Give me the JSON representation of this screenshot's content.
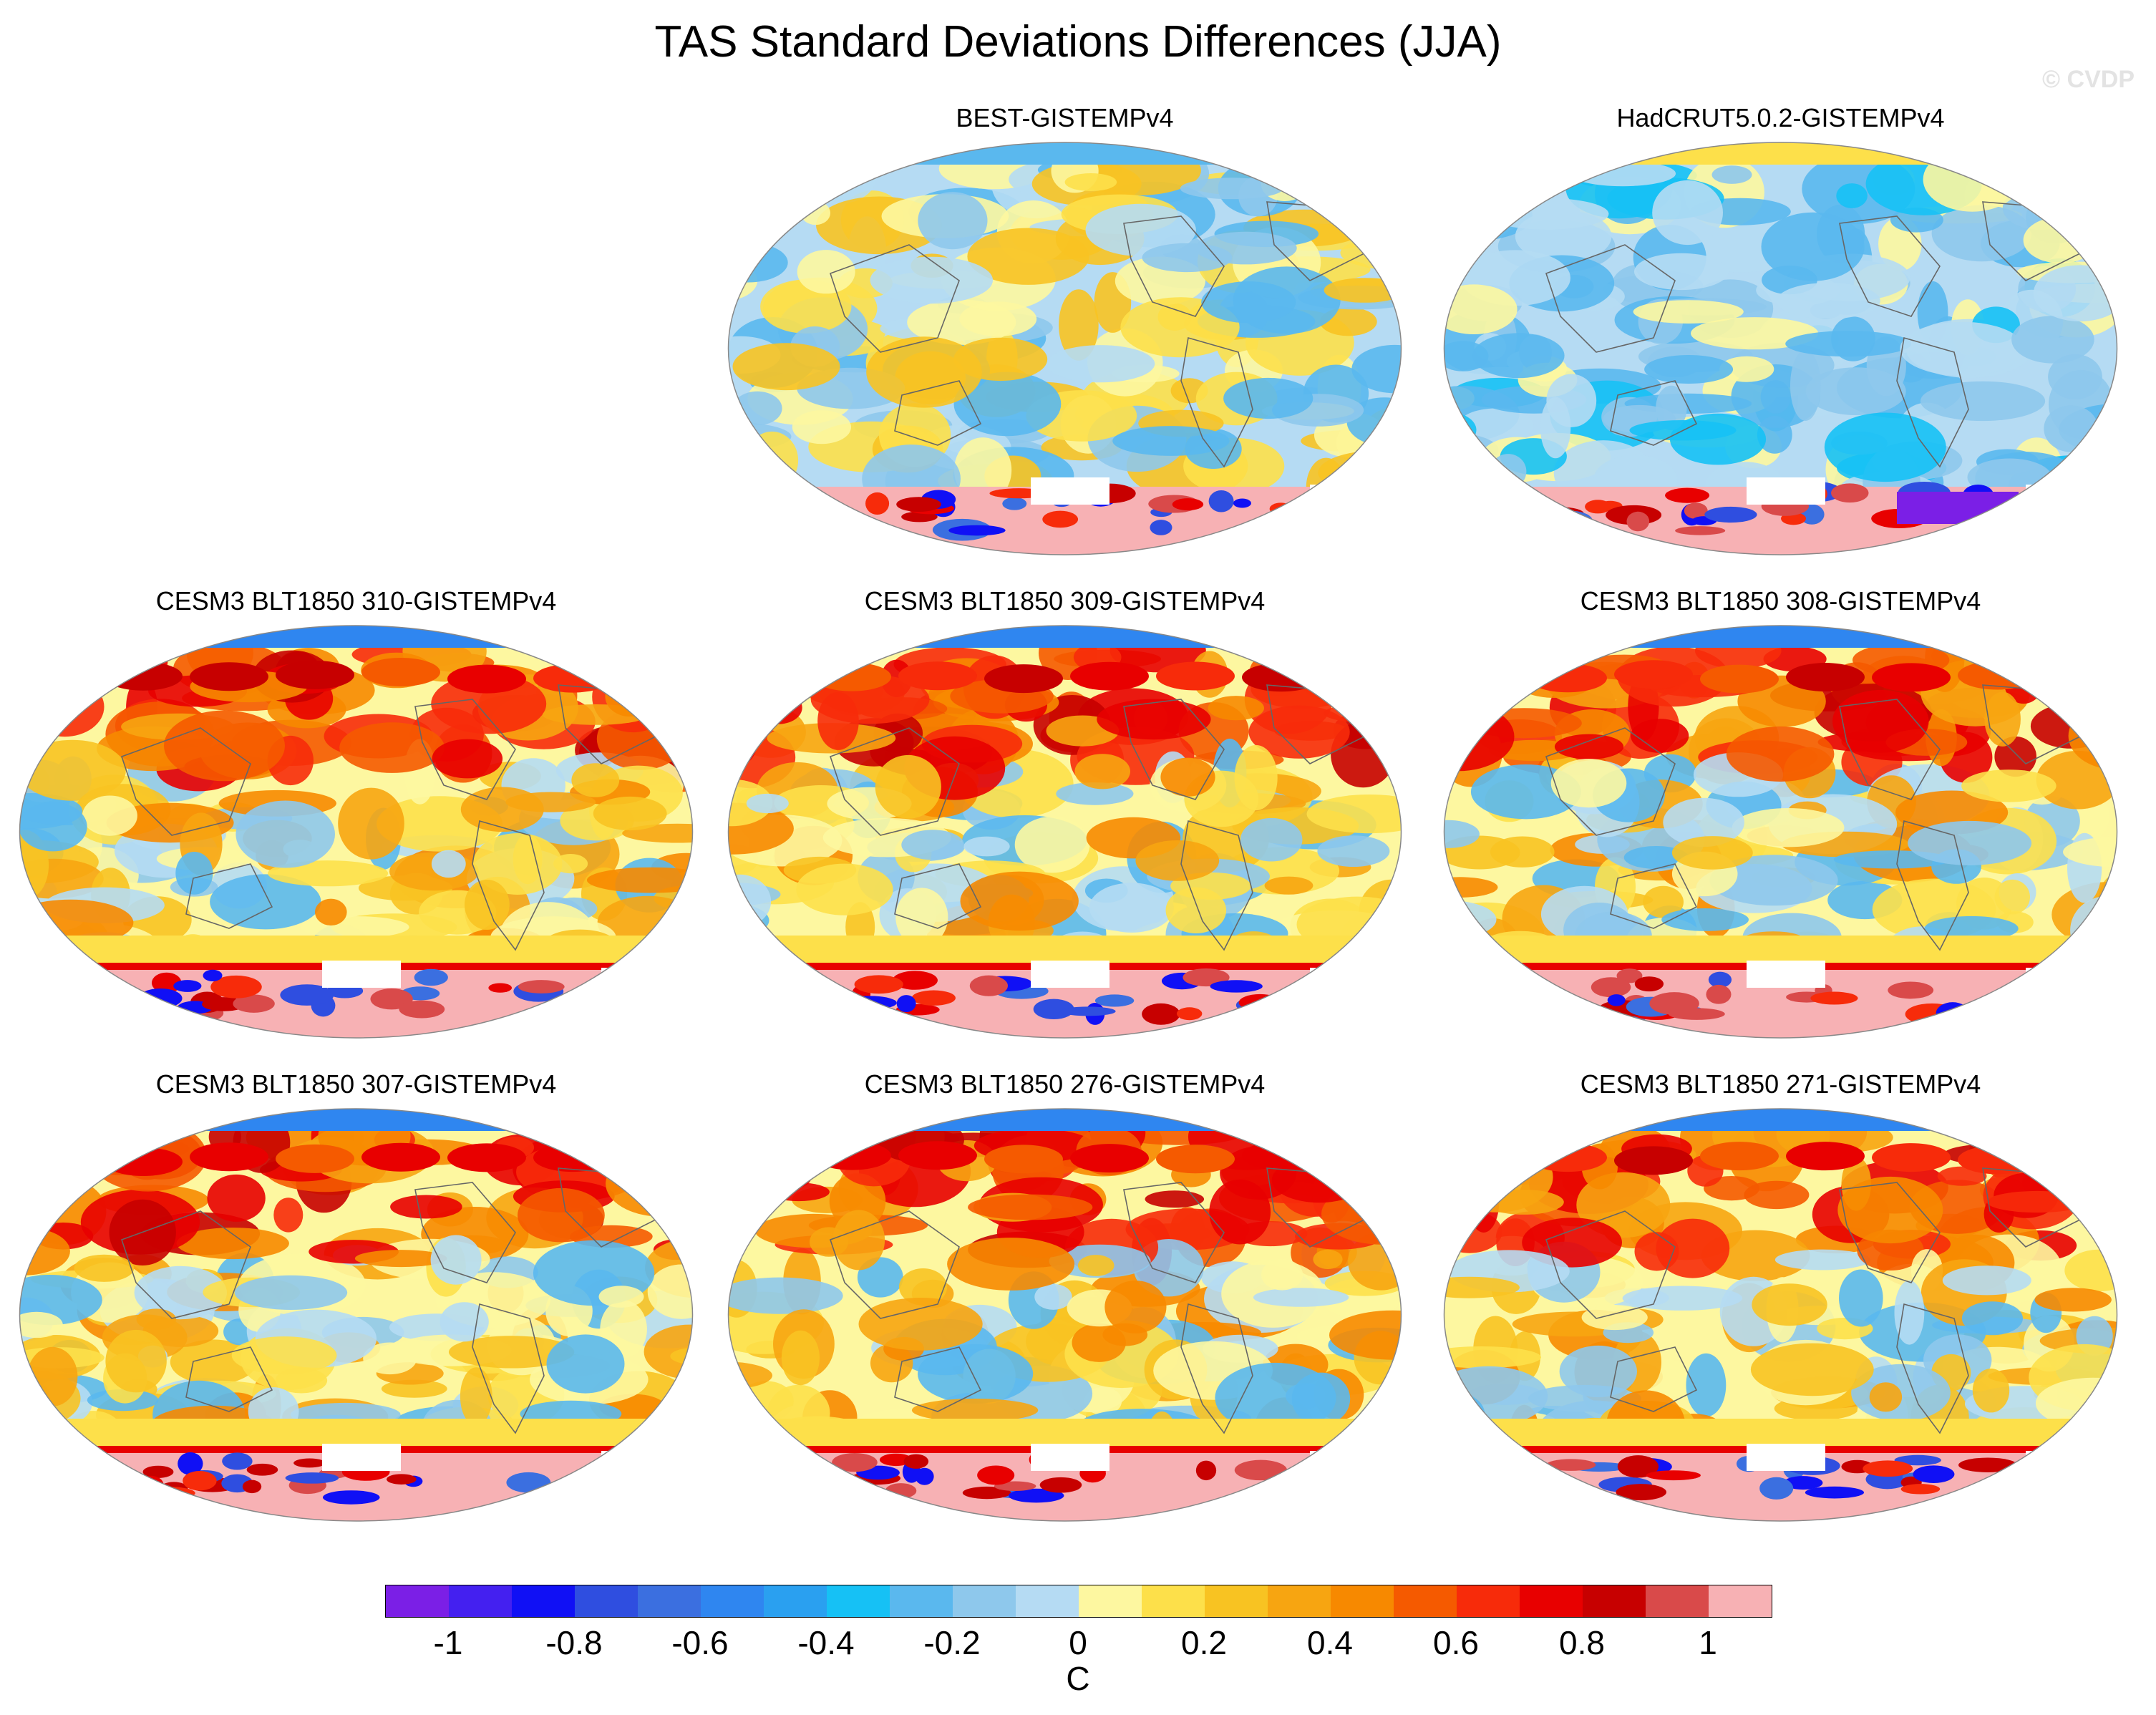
{
  "title": "TAS Standard Deviations Differences (JJA)",
  "credit": "© CVDP",
  "panels": [
    {
      "title": "BEST-GISTEMPv4",
      "style": "obs",
      "seed": 3
    },
    {
      "title": "HadCRUT5.0.2-GISTEMPv4",
      "style": "obs2",
      "seed": 7
    },
    {
      "title": "CESM3 BLT1850 310-GISTEMPv4",
      "style": "model",
      "seed": 11
    },
    {
      "title": "CESM3 BLT1850 309-GISTEMPv4",
      "style": "model",
      "seed": 13
    },
    {
      "title": "CESM3 BLT1850 308-GISTEMPv4",
      "style": "model",
      "seed": 17
    },
    {
      "title": "CESM3 BLT1850 307-GISTEMPv4",
      "style": "model",
      "seed": 19
    },
    {
      "title": "CESM3 BLT1850 276-GISTEMPv4",
      "style": "model",
      "seed": 23
    },
    {
      "title": "CESM3 BLT1850 271-GISTEMPv4",
      "style": "model",
      "seed": 29
    }
  ],
  "colorbar": {
    "colors": [
      "#7b1fe6",
      "#4420f0",
      "#1010f5",
      "#2f4ee0",
      "#3b6fe0",
      "#2f86f0",
      "#2aa0f0",
      "#16c1f5",
      "#5ab8ee",
      "#8ec8ec",
      "#b5dbf3",
      "#fdf7a0",
      "#fde04a",
      "#f8c322",
      "#f7a511",
      "#f78900",
      "#f55a00",
      "#f72b0a",
      "#e80000",
      "#c70000",
      "#d94a4a",
      "#f7b1b4"
    ],
    "ticks": [
      "-1",
      "-0.8",
      "-0.6",
      "-0.4",
      "-0.2",
      "0",
      "0.2",
      "0.4",
      "0.6",
      "0.8",
      "1"
    ],
    "units": "C"
  }
}
